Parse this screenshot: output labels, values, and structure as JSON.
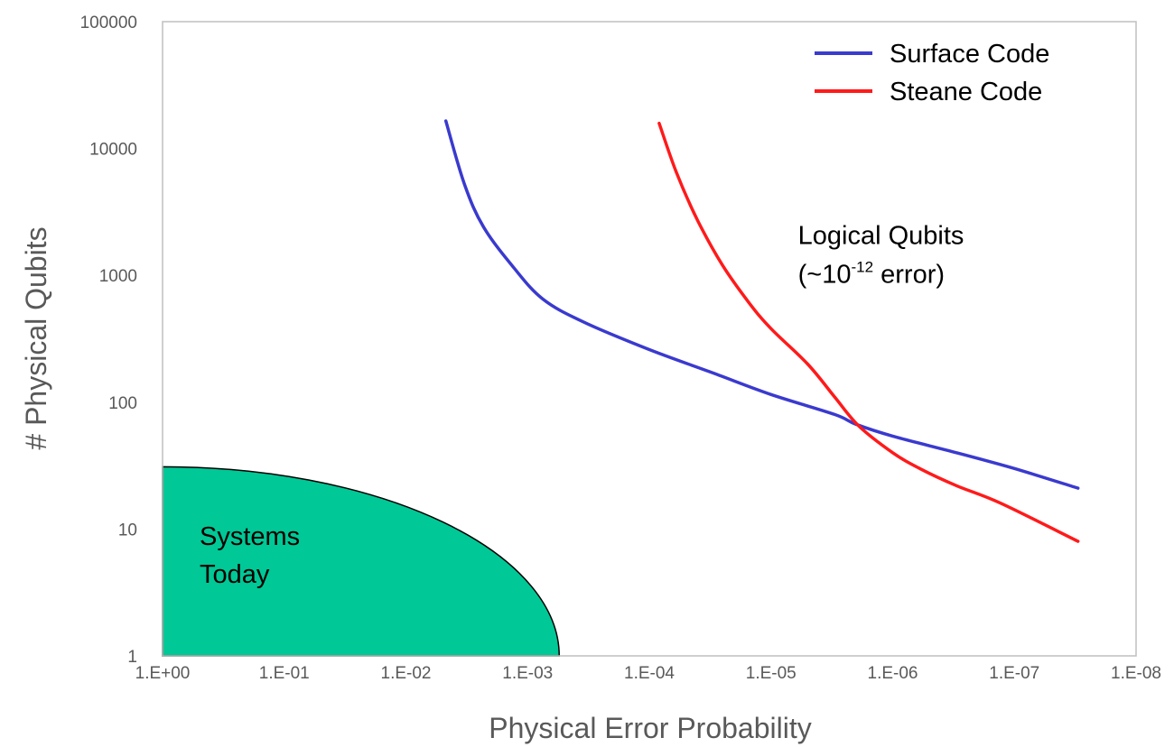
{
  "colors": {
    "surface_code": "#3a3acf",
    "steane_code": "#ff1a1a",
    "systems_today_fill": "#00c896",
    "plot_border": "#bfbfbf",
    "axis_text": "#595959"
  },
  "chart_data": {
    "type": "line",
    "title": "",
    "xlabel": "Physical Error Probability",
    "ylabel": "# Physical Qubits",
    "x_scale": "log",
    "x_reversed": true,
    "y_scale": "log",
    "xlim": [
      1,
      1e-08
    ],
    "ylim": [
      1,
      100000
    ],
    "grid": false,
    "legend_position": "top-right",
    "x_tick_values": [
      1,
      0.1,
      0.01,
      0.001,
      0.0001,
      1e-05,
      1e-06,
      1e-07,
      1e-08
    ],
    "x_tick_labels": [
      "1.E+00",
      "1.E-01",
      "1.E-02",
      "1.E-03",
      "1.E-04",
      "1.E-05",
      "1.E-06",
      "1.E-07",
      "1.E-08"
    ],
    "y_tick_values": [
      1,
      10,
      100,
      1000,
      10000,
      100000
    ],
    "y_tick_labels": [
      "1",
      "10",
      "100",
      "1000",
      "10000",
      "100000"
    ],
    "series": [
      {
        "name": "Surface Code",
        "x": [
          0.0047,
          0.0033,
          0.0023,
          0.0013,
          0.00075,
          0.00035,
          0.0001,
          3e-05,
          1e-05,
          3e-06,
          2e-06,
          1e-06,
          3e-07,
          1e-07,
          3e-08
        ],
        "y": [
          16500,
          5200,
          2400,
          1150,
          650,
          430,
          260,
          170,
          115,
          80,
          67,
          54,
          40,
          30,
          21
        ]
      },
      {
        "name": "Steane Code",
        "x": [
          8.3e-05,
          6e-05,
          4e-05,
          2.5e-05,
          1.5e-05,
          1e-05,
          5e-06,
          3e-06,
          1.9e-06,
          1e-06,
          6e-07,
          3e-07,
          1.3e-07,
          3e-08
        ],
        "y": [
          15800,
          6500,
          2700,
          1200,
          600,
          380,
          200,
          110,
          65,
          40,
          30,
          22,
          16,
          8
        ]
      }
    ],
    "legend": [
      "Surface Code",
      "Steane Code"
    ],
    "region": {
      "label_lines": [
        "Systems",
        "Today"
      ],
      "x_extent": 0.00055,
      "y_extent": 31
    },
    "annotation": {
      "line1": "Logical Qubits",
      "line2_prefix": "(~10",
      "line2_sup": "-12",
      "line2_suffix": " error)",
      "x": 6e-06,
      "y": 1500
    }
  }
}
